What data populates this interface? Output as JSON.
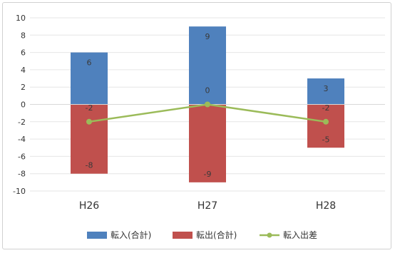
{
  "chart_data": {
    "type": "bar",
    "categories": [
      "H26",
      "H27",
      "H28"
    ],
    "yticks": [
      "10",
      "8",
      "6",
      "4",
      "2",
      "0",
      "-2",
      "-4",
      "-6",
      "-8",
      "-10"
    ],
    "ylim": [
      -10,
      10
    ],
    "grid": true,
    "legend_position": "bottom",
    "series": [
      {
        "name": "転入(合計)",
        "kind": "bar",
        "color": "#4f81bd",
        "values": [
          6,
          9,
          3
        ],
        "labels": [
          "6",
          "9",
          "3"
        ]
      },
      {
        "name": "転出(合計)",
        "kind": "bar",
        "color": "#c0504d",
        "values": [
          -8,
          -9,
          -5
        ],
        "labels": [
          "-8",
          "-9",
          "-5"
        ]
      },
      {
        "name": "転入出差",
        "kind": "line",
        "color": "#9bbb59",
        "values": [
          -2,
          0,
          -2
        ],
        "labels": [
          "-2",
          "0",
          "-2"
        ]
      }
    ]
  }
}
